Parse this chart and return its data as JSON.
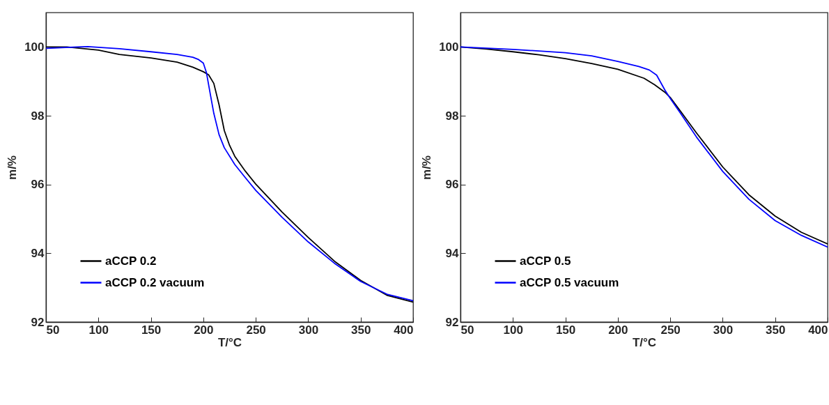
{
  "chart_data": [
    {
      "type": "line",
      "xlabel": "T/°C",
      "ylabel": "m/%",
      "xlim": [
        50,
        400
      ],
      "ylim": [
        92,
        101
      ],
      "xticks": [
        50,
        100,
        150,
        200,
        250,
        300,
        350,
        400
      ],
      "yticks": [
        92,
        94,
        96,
        98,
        100
      ],
      "grid": false,
      "legend": "bottom left",
      "series": [
        {
          "name": "aCCP 0.2",
          "color": "#000000",
          "x": [
            50,
            70,
            80,
            100,
            120,
            150,
            175,
            190,
            200,
            205,
            210,
            215,
            220,
            225,
            230,
            240,
            250,
            275,
            300,
            325,
            350,
            375,
            400
          ],
          "values": [
            100,
            100,
            99.97,
            99.91,
            99.78,
            99.68,
            99.56,
            99.41,
            99.28,
            99.19,
            98.94,
            98.32,
            97.57,
            97.14,
            96.82,
            96.39,
            96.01,
            95.2,
            94.46,
            93.77,
            93.21,
            92.78,
            92.58
          ]
        },
        {
          "name": "aCCP 0.2 vacuum",
          "color": "#0000ff",
          "x": [
            50,
            80,
            90,
            120,
            150,
            175,
            190,
            195,
            200,
            203,
            207,
            210,
            215,
            220,
            230,
            240,
            250,
            275,
            300,
            325,
            350,
            375,
            400
          ],
          "values": [
            99.96,
            100,
            100.01,
            99.95,
            99.86,
            99.78,
            99.7,
            99.64,
            99.53,
            99.25,
            98.57,
            98.07,
            97.45,
            97.07,
            96.58,
            96.2,
            95.83,
            95.05,
            94.33,
            93.71,
            93.18,
            92.81,
            92.62
          ]
        }
      ]
    },
    {
      "type": "line",
      "xlabel": "T/°C",
      "ylabel": "m/%",
      "xlim": [
        50,
        400
      ],
      "ylim": [
        92,
        101
      ],
      "xticks": [
        50,
        100,
        150,
        200,
        250,
        300,
        350,
        400
      ],
      "yticks": [
        92,
        94,
        96,
        98,
        100
      ],
      "grid": false,
      "legend": "bottom left",
      "series": [
        {
          "name": "aCCP 0.5",
          "color": "#000000",
          "x": [
            50,
            75,
            100,
            125,
            150,
            175,
            200,
            225,
            235,
            245,
            250,
            260,
            275,
            300,
            325,
            350,
            375,
            400
          ],
          "values": [
            100,
            99.94,
            99.86,
            99.77,
            99.66,
            99.52,
            99.35,
            99.09,
            98.9,
            98.68,
            98.53,
            98.12,
            97.5,
            96.51,
            95.7,
            95.08,
            94.61,
            94.27
          ]
        },
        {
          "name": "aCCP 0.5 vacuum",
          "color": "#0000ff",
          "x": [
            50,
            100,
            150,
            175,
            200,
            220,
            230,
            237,
            245,
            250,
            260,
            275,
            300,
            325,
            350,
            375,
            400
          ],
          "values": [
            100,
            99.93,
            99.83,
            99.74,
            99.58,
            99.43,
            99.33,
            99.18,
            98.74,
            98.5,
            98.06,
            97.38,
            96.38,
            95.57,
            94.95,
            94.52,
            94.18
          ]
        }
      ]
    }
  ]
}
